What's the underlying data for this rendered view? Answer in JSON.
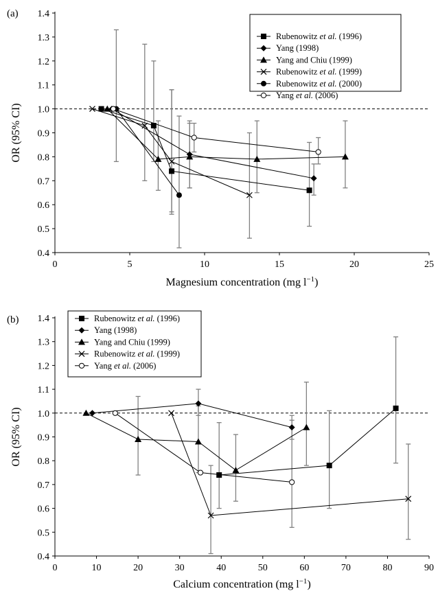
{
  "chart_data": [
    {
      "panel_label": "(a)",
      "type": "line",
      "xlabel": "Magnesium concentration (mg l",
      "xlabel_sup": "−1",
      "xlabel_close": ")",
      "ylabel": "OR (95% CI)",
      "xlim": [
        0,
        25
      ],
      "ylim": [
        0.4,
        1.4
      ],
      "x_ticks": [
        0,
        5,
        10,
        15,
        20,
        25
      ],
      "y_ticks": [
        "0.4",
        "0.5",
        "0.6",
        "0.7",
        "0.8",
        "0.9",
        "1.0",
        "1.1",
        "1.2",
        "1.3",
        "1.4"
      ],
      "reference_line": 1.0,
      "legend_position": "top-right",
      "series": [
        {
          "name": "Rubenowitz et al. (1996)",
          "name_pre": "Rubenowitz ",
          "name_it": "et al.",
          "name_post": " (1996)",
          "marker": "square",
          "points": [
            {
              "x": 3.1,
              "y": 1.0
            },
            {
              "x": 6.6,
              "y": 0.93,
              "lo": 0.78,
              "hi": 1.2
            },
            {
              "x": 7.8,
              "y": 0.74,
              "lo": 0.56,
              "hi": 1.08
            },
            {
              "x": 17.0,
              "y": 0.66,
              "lo": 0.51,
              "hi": 0.86
            }
          ]
        },
        {
          "name": "Yang (1998)",
          "name_pre": "Yang (1998)",
          "name_it": "",
          "name_post": "",
          "marker": "diamond",
          "points": [
            {
              "x": 3.8,
              "y": 1.0
            },
            {
              "x": 9.0,
              "y": 0.81,
              "lo": 0.67,
              "hi": 0.95
            },
            {
              "x": 17.3,
              "y": 0.71,
              "lo": 0.64,
              "hi": 0.77
            }
          ]
        },
        {
          "name": "Yang and Chiu (1999)",
          "name_pre": "Yang and Chiu (1999)",
          "name_it": "",
          "name_post": "",
          "marker": "triangle",
          "points": [
            {
              "x": 3.5,
              "y": 1.0
            },
            {
              "x": 6.9,
              "y": 0.79,
              "lo": 0.66,
              "hi": 0.95
            },
            {
              "x": 9.0,
              "y": 0.8,
              "lo": 0.67,
              "hi": 0.94
            },
            {
              "x": 13.5,
              "y": 0.79,
              "lo": 0.65,
              "hi": 0.95
            },
            {
              "x": 19.4,
              "y": 0.8,
              "lo": 0.67,
              "hi": 0.95
            }
          ]
        },
        {
          "name": "Rubenowitz et al. (1999)",
          "name_pre": "Rubenowitz ",
          "name_it": "et al.",
          "name_post": " (1999)",
          "marker": "x",
          "points": [
            {
              "x": 2.5,
              "y": 1.0
            },
            {
              "x": 6.0,
              "y": 0.93,
              "lo": 0.7,
              "hi": 1.27
            },
            {
              "x": 7.8,
              "y": 0.78,
              "lo": 0.57,
              "hi": 1.08
            },
            {
              "x": 13.0,
              "y": 0.64,
              "lo": 0.46,
              "hi": 0.9
            }
          ]
        },
        {
          "name": "Rubenowitz et al. (2000)",
          "name_pre": "Rubenowitz ",
          "name_it": "et al.",
          "name_post": " (2000)",
          "marker": "circle",
          "points": [
            {
              "x": 4.1,
              "y": 1.0,
              "lo": 0.78,
              "hi": 1.33
            },
            {
              "x": 8.3,
              "y": 0.64,
              "lo": 0.42,
              "hi": 0.97
            }
          ]
        },
        {
          "name": "Yang et al. (2006)",
          "name_pre": "Yang ",
          "name_it": "et al.",
          "name_post": " (2006)",
          "marker": "open-circle",
          "points": [
            {
              "x": 3.9,
              "y": 1.0
            },
            {
              "x": 9.3,
              "y": 0.88,
              "lo": 0.82,
              "hi": 0.94
            },
            {
              "x": 17.6,
              "y": 0.82,
              "lo": 0.77,
              "hi": 0.88
            }
          ]
        }
      ]
    },
    {
      "panel_label": "(b)",
      "type": "line",
      "xlabel": "Calcium concentration (mg l",
      "xlabel_sup": "−1",
      "xlabel_close": ")",
      "ylabel": "OR (95% CI)",
      "xlim": [
        0,
        90
      ],
      "ylim": [
        0.4,
        1.4
      ],
      "x_ticks": [
        0,
        10,
        20,
        30,
        40,
        50,
        60,
        70,
        80,
        90
      ],
      "y_ticks": [
        "0.4",
        "0.5",
        "0.6",
        "0.7",
        "0.8",
        "0.9",
        "1.0",
        "1.1",
        "1.2",
        "1.3",
        "1.4"
      ],
      "reference_line": 1.0,
      "legend_position": "top-left",
      "series": [
        {
          "name": "Rubenowitz et al. (1996)",
          "name_pre": "Rubenowitz ",
          "name_it": "et al.",
          "name_post": " (1996)",
          "marker": "square",
          "points": [
            {
              "x": 39.5,
              "y": 0.74,
              "lo": 0.6,
              "hi": 0.96
            },
            {
              "x": 66.0,
              "y": 0.78,
              "lo": 0.6,
              "hi": 1.01
            },
            {
              "x": 82.0,
              "y": 1.02,
              "lo": 0.79,
              "hi": 1.32
            }
          ]
        },
        {
          "name": "Yang (1998)",
          "name_pre": "Yang (1998)",
          "name_it": "",
          "name_post": "",
          "marker": "diamond",
          "points": [
            {
              "x": 9.0,
              "y": 1.0
            },
            {
              "x": 34.5,
              "y": 1.04,
              "lo": 0.99,
              "hi": 1.1
            },
            {
              "x": 57.0,
              "y": 0.94,
              "lo": 0.89,
              "hi": 0.99
            }
          ]
        },
        {
          "name": "Yang and Chiu (1999)",
          "name_pre": "Yang and Chiu (1999)",
          "name_it": "",
          "name_post": "",
          "marker": "triangle",
          "points": [
            {
              "x": 7.5,
              "y": 1.0
            },
            {
              "x": 20.0,
              "y": 0.89,
              "lo": 0.74,
              "hi": 1.07
            },
            {
              "x": 34.5,
              "y": 0.88,
              "lo": 0.75,
              "hi": 1.03
            },
            {
              "x": 43.5,
              "y": 0.76,
              "lo": 0.63,
              "hi": 0.91
            },
            {
              "x": 60.5,
              "y": 0.94,
              "lo": 0.78,
              "hi": 1.13
            }
          ]
        },
        {
          "name": "Rubenowitz et al. (1999)",
          "name_pre": "Rubenowitz ",
          "name_it": "et al.",
          "name_post": " (1999)",
          "marker": "x",
          "points": [
            {
              "x": 28.0,
              "y": 1.0
            },
            {
              "x": 37.5,
              "y": 0.57,
              "lo": 0.41,
              "hi": 0.78
            },
            {
              "x": 85.0,
              "y": 0.64,
              "lo": 0.47,
              "hi": 0.87
            }
          ]
        },
        {
          "name": "Yang et al. (2006)",
          "name_pre": "Yang ",
          "name_it": "et al.",
          "name_post": " (2006)",
          "marker": "open-circle",
          "points": [
            {
              "x": 14.5,
              "y": 1.0
            },
            {
              "x": 35.0,
              "y": 0.75
            },
            {
              "x": 57.0,
              "y": 0.71,
              "lo": 0.52,
              "hi": 0.97
            }
          ]
        }
      ]
    }
  ]
}
